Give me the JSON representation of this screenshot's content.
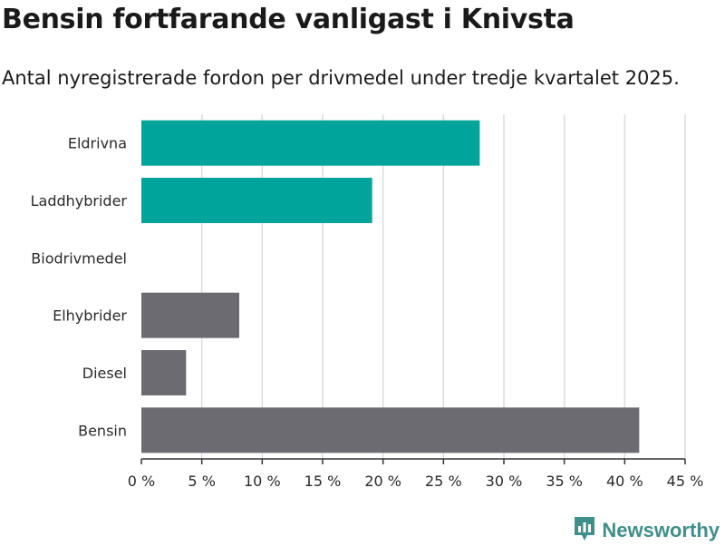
{
  "title": "Bensin fortfarande vanligast i Knivsta",
  "subtitle": "Antal nyregistrerade fordon per drivmedel under tredje kvartalet 2025.",
  "brand": {
    "name": "Newsworthy",
    "icon": "newsworthy-logo-icon",
    "color": "#3f8f8b"
  },
  "colors": {
    "highlight": "#00a49a",
    "default": "#6d6b72",
    "grid": "#dcdcdc",
    "axis": "#333333"
  },
  "chart_data": {
    "type": "bar",
    "orientation": "horizontal",
    "title": "Bensin fortfarande vanligast i Knivsta",
    "subtitle": "Antal nyregistrerade fordon per drivmedel under tredje kvartalet 2025.",
    "categories": [
      "Eldrivna",
      "Laddhybrider",
      "Biodrivmedel",
      "Elhybrider",
      "Diesel",
      "Bensin"
    ],
    "values": [
      28.0,
      19.1,
      0,
      8.1,
      3.7,
      41.2
    ],
    "highlight": [
      true,
      true,
      false,
      false,
      false,
      false
    ],
    "xlim": [
      0,
      45
    ],
    "xticks": [
      0,
      5,
      10,
      15,
      20,
      25,
      30,
      35,
      40,
      45
    ],
    "tick_labels": [
      "0 %",
      "5 %",
      "10 %",
      "15 %",
      "20 %",
      "25 %",
      "30 %",
      "35 %",
      "40 %",
      "45 %"
    ],
    "xlabel": "",
    "ylabel": "",
    "grid": true
  }
}
